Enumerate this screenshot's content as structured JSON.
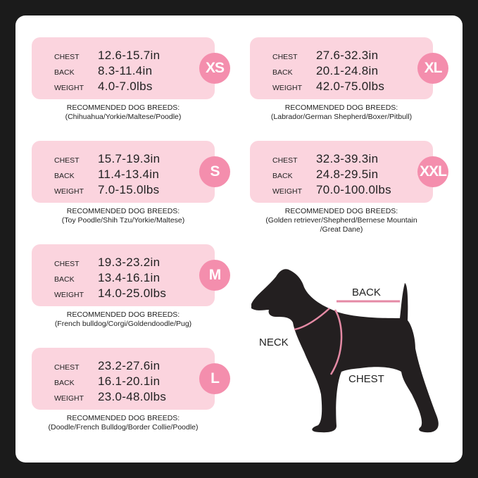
{
  "recommended_heading": "RECOMMENDED DOG BREEDS:",
  "field_labels": {
    "chest": "CHEST",
    "back": "BACK",
    "weight": "WEIGHT"
  },
  "sizes": [
    {
      "size": "XS",
      "chest": "12.6-15.7in",
      "back": "8.3-11.4in",
      "weight": "4.0-7.0lbs",
      "breeds": [
        "(Chihuahua/Yorkie/Maltese/Poodle)"
      ]
    },
    {
      "size": "S",
      "chest": "15.7-19.3in",
      "back": "11.4-13.4in",
      "weight": "7.0-15.0lbs",
      "breeds": [
        "(Toy Poodle/Shih Tzu/Yorkie/Maltese)"
      ]
    },
    {
      "size": "M",
      "chest": "19.3-23.2in",
      "back": "13.4-16.1in",
      "weight": "14.0-25.0lbs",
      "breeds": [
        "(French bulldog/Corgi/Goldendoodle/Pug)"
      ]
    },
    {
      "size": "L",
      "chest": "23.2-27.6in",
      "back": "16.1-20.1in",
      "weight": "23.0-48.0lbs",
      "breeds": [
        "(Doodle/French Bulldog/Border Collie/Poodle)"
      ]
    },
    {
      "size": "XL",
      "chest": "27.6-32.3in",
      "back": "20.1-24.8in",
      "weight": "42.0-75.0lbs",
      "breeds": [
        "(Labrador/German Shepherd/Boxer/Pitbull)"
      ]
    },
    {
      "size": "XXL",
      "chest": "32.3-39.3in",
      "back": "24.8-29.5in",
      "weight": "70.0-100.0lbs",
      "breeds": [
        "(Golden retriever/Shepherd/Bernese Mountain",
        "/Great Dane)"
      ]
    }
  ],
  "diagram": {
    "back": "BACK",
    "neck": "NECK",
    "chest": "CHEST"
  },
  "colors": {
    "card": "#fbd4de",
    "badge": "#f48ead",
    "measure_line": "#e58aa5",
    "background": "#1b1b1b"
  }
}
